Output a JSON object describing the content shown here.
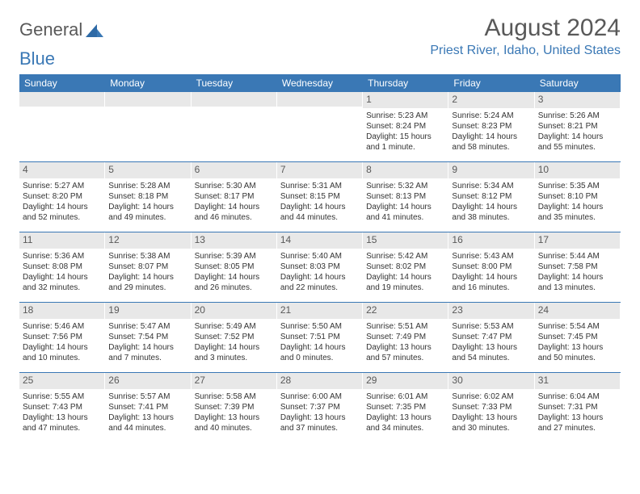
{
  "logo": {
    "text1": "General",
    "text2": "Blue"
  },
  "title": "August 2024",
  "location": "Priest River, Idaho, United States",
  "colors": {
    "header_bg": "#3a78b5",
    "header_text": "#ffffff",
    "daynum_bg": "#e8e8e8",
    "text": "#333333",
    "title_color": "#595959"
  },
  "day_headers": [
    "Sunday",
    "Monday",
    "Tuesday",
    "Wednesday",
    "Thursday",
    "Friday",
    "Saturday"
  ],
  "weeks": [
    [
      null,
      null,
      null,
      null,
      {
        "num": "1",
        "sunrise": "Sunrise: 5:23 AM",
        "sunset": "Sunset: 8:24 PM",
        "daylight": "Daylight: 15 hours and 1 minute."
      },
      {
        "num": "2",
        "sunrise": "Sunrise: 5:24 AM",
        "sunset": "Sunset: 8:23 PM",
        "daylight": "Daylight: 14 hours and 58 minutes."
      },
      {
        "num": "3",
        "sunrise": "Sunrise: 5:26 AM",
        "sunset": "Sunset: 8:21 PM",
        "daylight": "Daylight: 14 hours and 55 minutes."
      }
    ],
    [
      {
        "num": "4",
        "sunrise": "Sunrise: 5:27 AM",
        "sunset": "Sunset: 8:20 PM",
        "daylight": "Daylight: 14 hours and 52 minutes."
      },
      {
        "num": "5",
        "sunrise": "Sunrise: 5:28 AM",
        "sunset": "Sunset: 8:18 PM",
        "daylight": "Daylight: 14 hours and 49 minutes."
      },
      {
        "num": "6",
        "sunrise": "Sunrise: 5:30 AM",
        "sunset": "Sunset: 8:17 PM",
        "daylight": "Daylight: 14 hours and 46 minutes."
      },
      {
        "num": "7",
        "sunrise": "Sunrise: 5:31 AM",
        "sunset": "Sunset: 8:15 PM",
        "daylight": "Daylight: 14 hours and 44 minutes."
      },
      {
        "num": "8",
        "sunrise": "Sunrise: 5:32 AM",
        "sunset": "Sunset: 8:13 PM",
        "daylight": "Daylight: 14 hours and 41 minutes."
      },
      {
        "num": "9",
        "sunrise": "Sunrise: 5:34 AM",
        "sunset": "Sunset: 8:12 PM",
        "daylight": "Daylight: 14 hours and 38 minutes."
      },
      {
        "num": "10",
        "sunrise": "Sunrise: 5:35 AM",
        "sunset": "Sunset: 8:10 PM",
        "daylight": "Daylight: 14 hours and 35 minutes."
      }
    ],
    [
      {
        "num": "11",
        "sunrise": "Sunrise: 5:36 AM",
        "sunset": "Sunset: 8:08 PM",
        "daylight": "Daylight: 14 hours and 32 minutes."
      },
      {
        "num": "12",
        "sunrise": "Sunrise: 5:38 AM",
        "sunset": "Sunset: 8:07 PM",
        "daylight": "Daylight: 14 hours and 29 minutes."
      },
      {
        "num": "13",
        "sunrise": "Sunrise: 5:39 AM",
        "sunset": "Sunset: 8:05 PM",
        "daylight": "Daylight: 14 hours and 26 minutes."
      },
      {
        "num": "14",
        "sunrise": "Sunrise: 5:40 AM",
        "sunset": "Sunset: 8:03 PM",
        "daylight": "Daylight: 14 hours and 22 minutes."
      },
      {
        "num": "15",
        "sunrise": "Sunrise: 5:42 AM",
        "sunset": "Sunset: 8:02 PM",
        "daylight": "Daylight: 14 hours and 19 minutes."
      },
      {
        "num": "16",
        "sunrise": "Sunrise: 5:43 AM",
        "sunset": "Sunset: 8:00 PM",
        "daylight": "Daylight: 14 hours and 16 minutes."
      },
      {
        "num": "17",
        "sunrise": "Sunrise: 5:44 AM",
        "sunset": "Sunset: 7:58 PM",
        "daylight": "Daylight: 14 hours and 13 minutes."
      }
    ],
    [
      {
        "num": "18",
        "sunrise": "Sunrise: 5:46 AM",
        "sunset": "Sunset: 7:56 PM",
        "daylight": "Daylight: 14 hours and 10 minutes."
      },
      {
        "num": "19",
        "sunrise": "Sunrise: 5:47 AM",
        "sunset": "Sunset: 7:54 PM",
        "daylight": "Daylight: 14 hours and 7 minutes."
      },
      {
        "num": "20",
        "sunrise": "Sunrise: 5:49 AM",
        "sunset": "Sunset: 7:52 PM",
        "daylight": "Daylight: 14 hours and 3 minutes."
      },
      {
        "num": "21",
        "sunrise": "Sunrise: 5:50 AM",
        "sunset": "Sunset: 7:51 PM",
        "daylight": "Daylight: 14 hours and 0 minutes."
      },
      {
        "num": "22",
        "sunrise": "Sunrise: 5:51 AM",
        "sunset": "Sunset: 7:49 PM",
        "daylight": "Daylight: 13 hours and 57 minutes."
      },
      {
        "num": "23",
        "sunrise": "Sunrise: 5:53 AM",
        "sunset": "Sunset: 7:47 PM",
        "daylight": "Daylight: 13 hours and 54 minutes."
      },
      {
        "num": "24",
        "sunrise": "Sunrise: 5:54 AM",
        "sunset": "Sunset: 7:45 PM",
        "daylight": "Daylight: 13 hours and 50 minutes."
      }
    ],
    [
      {
        "num": "25",
        "sunrise": "Sunrise: 5:55 AM",
        "sunset": "Sunset: 7:43 PM",
        "daylight": "Daylight: 13 hours and 47 minutes."
      },
      {
        "num": "26",
        "sunrise": "Sunrise: 5:57 AM",
        "sunset": "Sunset: 7:41 PM",
        "daylight": "Daylight: 13 hours and 44 minutes."
      },
      {
        "num": "27",
        "sunrise": "Sunrise: 5:58 AM",
        "sunset": "Sunset: 7:39 PM",
        "daylight": "Daylight: 13 hours and 40 minutes."
      },
      {
        "num": "28",
        "sunrise": "Sunrise: 6:00 AM",
        "sunset": "Sunset: 7:37 PM",
        "daylight": "Daylight: 13 hours and 37 minutes."
      },
      {
        "num": "29",
        "sunrise": "Sunrise: 6:01 AM",
        "sunset": "Sunset: 7:35 PM",
        "daylight": "Daylight: 13 hours and 34 minutes."
      },
      {
        "num": "30",
        "sunrise": "Sunrise: 6:02 AM",
        "sunset": "Sunset: 7:33 PM",
        "daylight": "Daylight: 13 hours and 30 minutes."
      },
      {
        "num": "31",
        "sunrise": "Sunrise: 6:04 AM",
        "sunset": "Sunset: 7:31 PM",
        "daylight": "Daylight: 13 hours and 27 minutes."
      }
    ]
  ]
}
